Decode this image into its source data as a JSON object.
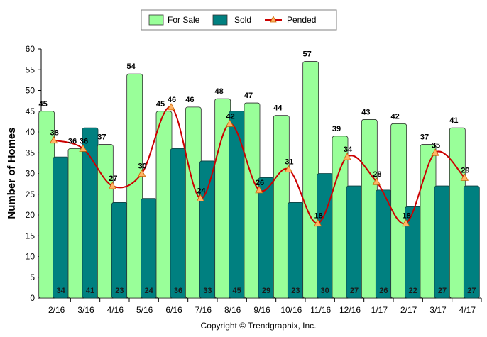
{
  "chart_data": {
    "type": "bar",
    "categories": [
      "2/16",
      "3/16",
      "4/16",
      "5/16",
      "6/16",
      "7/16",
      "8/16",
      "9/16",
      "10/16",
      "11/16",
      "12/16",
      "1/17",
      "2/17",
      "3/17",
      "4/17"
    ],
    "series": [
      {
        "name": "For Sale",
        "type": "bar",
        "color": "#99ff99",
        "values": [
          45,
          36,
          37,
          54,
          45,
          46,
          48,
          47,
          44,
          57,
          39,
          43,
          42,
          37,
          41
        ]
      },
      {
        "name": "Sold",
        "type": "bar",
        "color": "#008080",
        "values": [
          34,
          41,
          23,
          24,
          36,
          33,
          45,
          29,
          23,
          30,
          27,
          26,
          22,
          27,
          27
        ]
      },
      {
        "name": "Pended",
        "type": "line",
        "color": "#cc0000",
        "marker_color": "#ffb366",
        "values": [
          38,
          36,
          27,
          30,
          46,
          24,
          42,
          26,
          31,
          18,
          34,
          28,
          18,
          35,
          29
        ]
      }
    ],
    "ylabel": "Number of Homes",
    "xlabel": "",
    "ylim": [
      0,
      60
    ],
    "yticks": [
      0,
      5,
      10,
      15,
      20,
      25,
      30,
      35,
      40,
      45,
      50,
      55,
      60
    ],
    "legend_position": "top-center",
    "grid": false
  },
  "footer": "Copyright © Trendgraphix, Inc."
}
